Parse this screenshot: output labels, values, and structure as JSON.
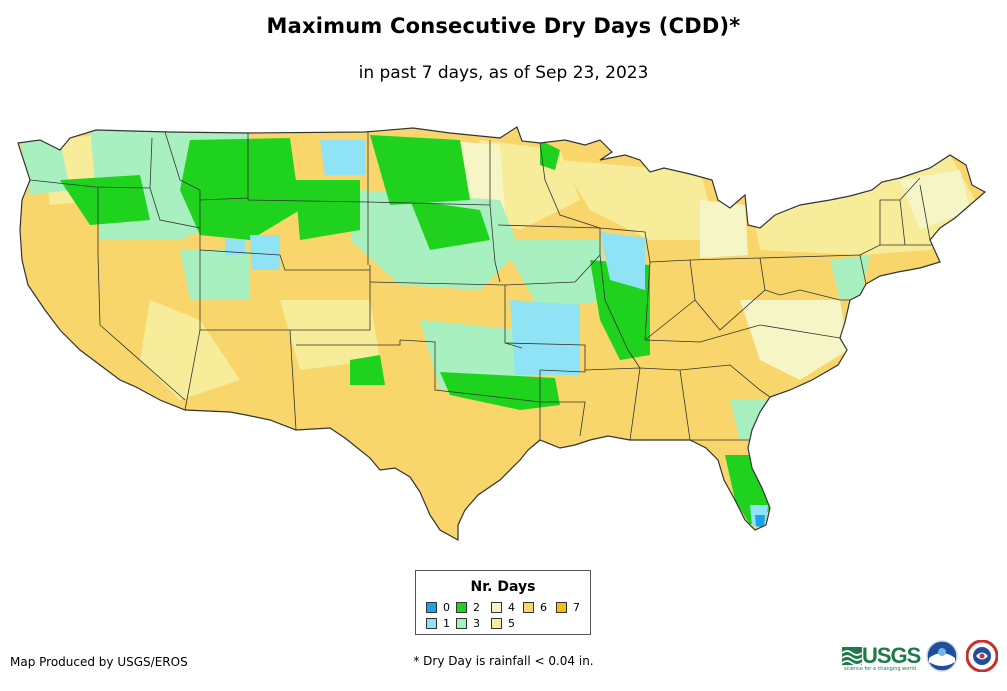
{
  "header": {
    "title": "Maximum Consecutive Dry Days (CDD)*",
    "subtitle": "in past 7 days, as of Sep 23, 2023"
  },
  "legend": {
    "title": "Nr. Days",
    "items": [
      {
        "label": "0",
        "color": "#1aa3e8"
      },
      {
        "label": "1",
        "color": "#8fe3f5"
      },
      {
        "label": "2",
        "color": "#1ed21e"
      },
      {
        "label": "3",
        "color": "#a9f0c0"
      },
      {
        "label": "4",
        "color": "#f5f5c6"
      },
      {
        "label": "5",
        "color": "#f7ec9a"
      },
      {
        "label": "6",
        "color": "#f8d66b"
      },
      {
        "label": "7",
        "color": "#f5bf0c"
      }
    ]
  },
  "footer": {
    "credit": "Map Produced by USGS/EROS",
    "note": "* Dry Day is rainfall < 0.04 in."
  },
  "logos": {
    "usgs": "USGS",
    "usgs_tagline": "science for a changing world",
    "noaa": "noaa-logo-icon",
    "nws": "nws-logo-icon"
  },
  "map": {
    "base_color": "#f8d66b",
    "border_color": "#333333"
  }
}
